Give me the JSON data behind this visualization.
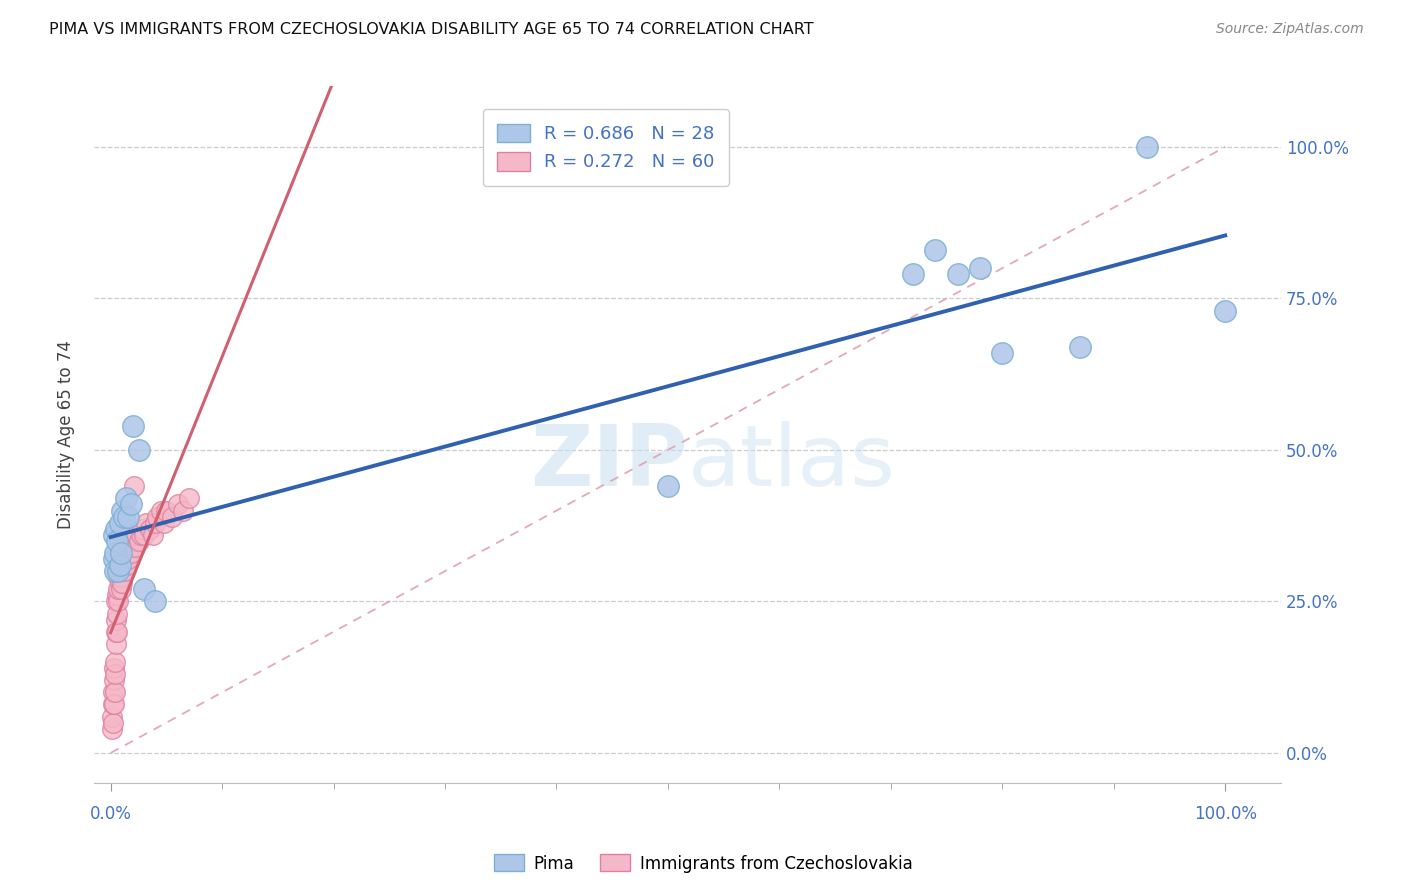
{
  "title": "PIMA VS IMMIGRANTS FROM CZECHOSLOVAKIA DISABILITY AGE 65 TO 74 CORRELATION CHART",
  "source": "Source: ZipAtlas.com",
  "ylabel": "Disability Age 65 to 74",
  "watermark": "ZIPatlas",
  "pima_color": "#aec6e8",
  "pima_edge_color": "#7bafd4",
  "czech_color": "#f4b8c8",
  "czech_edge_color": "#e080a0",
  "legend_pima_label": "R = 0.686   N = 28",
  "legend_czech_label": "R = 0.272   N = 60",
  "legend_pima_color": "#aec6e8",
  "legend_czech_color": "#f4b8c8",
  "bottom_pima_label": "Pima",
  "bottom_czech_label": "Immigrants from Czechoslovakia",
  "tick_color": "#4472c4",
  "line_blue_color": "#3060b0",
  "line_pink_color": "#d06070",
  "diag_color": "#e0a0b0",
  "grid_color": "#cccccc",
  "pima_x": [
    0.003,
    0.003,
    0.004,
    0.004,
    0.005,
    0.006,
    0.007,
    0.008,
    0.008,
    0.009,
    0.01,
    0.012,
    0.014,
    0.016,
    0.018,
    0.02,
    0.025,
    0.03,
    0.04,
    0.5,
    0.72,
    0.74,
    0.76,
    0.78,
    0.8,
    0.87,
    0.93,
    1.0
  ],
  "pima_y": [
    0.36,
    0.32,
    0.33,
    0.3,
    0.37,
    0.35,
    0.3,
    0.31,
    0.38,
    0.33,
    0.4,
    0.39,
    0.42,
    0.39,
    0.41,
    0.54,
    0.5,
    0.27,
    0.25,
    0.44,
    0.79,
    0.83,
    0.79,
    0.8,
    0.66,
    0.67,
    1.0,
    0.73
  ],
  "czech_x": [
    0.001,
    0.001,
    0.002,
    0.002,
    0.002,
    0.003,
    0.003,
    0.003,
    0.004,
    0.004,
    0.004,
    0.005,
    0.005,
    0.005,
    0.005,
    0.006,
    0.006,
    0.006,
    0.007,
    0.007,
    0.007,
    0.008,
    0.008,
    0.009,
    0.009,
    0.01,
    0.01,
    0.011,
    0.011,
    0.012,
    0.012,
    0.013,
    0.014,
    0.015,
    0.015,
    0.016,
    0.016,
    0.017,
    0.018,
    0.019,
    0.02,
    0.021,
    0.022,
    0.023,
    0.025,
    0.027,
    0.028,
    0.03,
    0.032,
    0.035,
    0.038,
    0.04,
    0.042,
    0.045,
    0.048,
    0.05,
    0.055,
    0.06,
    0.065,
    0.07
  ],
  "czech_y": [
    0.04,
    0.06,
    0.05,
    0.08,
    0.1,
    0.08,
    0.12,
    0.14,
    0.1,
    0.13,
    0.15,
    0.18,
    0.2,
    0.22,
    0.25,
    0.2,
    0.23,
    0.26,
    0.25,
    0.27,
    0.29,
    0.28,
    0.3,
    0.27,
    0.29,
    0.3,
    0.28,
    0.32,
    0.3,
    0.31,
    0.33,
    0.3,
    0.32,
    0.33,
    0.31,
    0.32,
    0.35,
    0.34,
    0.33,
    0.36,
    0.35,
    0.44,
    0.34,
    0.36,
    0.35,
    0.36,
    0.37,
    0.36,
    0.38,
    0.37,
    0.36,
    0.38,
    0.39,
    0.4,
    0.38,
    0.4,
    0.39,
    0.41,
    0.4,
    0.42
  ],
  "ytick_vals": [
    0.0,
    0.25,
    0.5,
    0.75,
    1.0
  ],
  "ytick_labels": [
    "0.0%",
    "25.0%",
    "50.0%",
    "75.0%",
    "100.0%"
  ],
  "xtick_minor_vals": [
    0.1,
    0.2,
    0.3,
    0.4,
    0.5,
    0.6,
    0.7,
    0.8,
    0.9
  ],
  "xlim": [
    -0.015,
    1.05
  ],
  "ylim": [
    -0.05,
    1.1
  ]
}
